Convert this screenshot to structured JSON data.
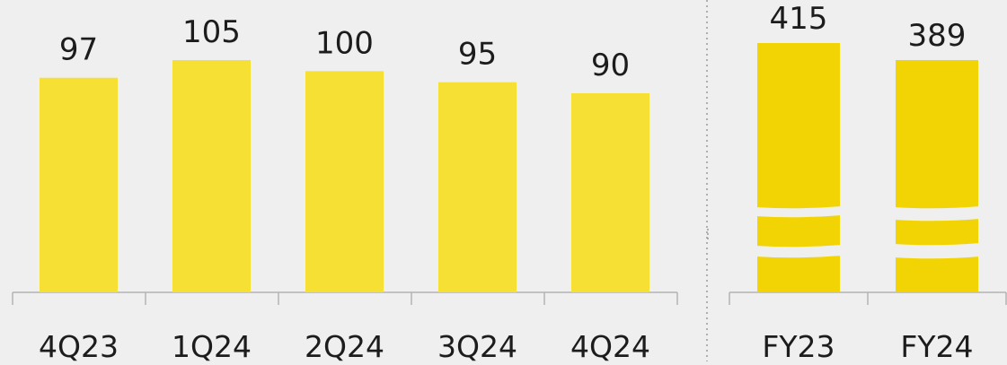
{
  "chart_data": [
    {
      "type": "bar",
      "categories": [
        "4Q23",
        "1Q24",
        "2Q24",
        "3Q24",
        "4Q24"
      ],
      "values": [
        97,
        105,
        100,
        95,
        90
      ],
      "data_labels": [
        "97",
        "105",
        "100",
        "95",
        "90"
      ],
      "title": "",
      "xlabel": "",
      "ylabel": "",
      "ylim": [
        0,
        105
      ],
      "grid": false,
      "bar_color": "#f6e034"
    },
    {
      "type": "bar",
      "categories": [
        "FY23",
        "FY24"
      ],
      "values": [
        415,
        389
      ],
      "data_labels": [
        "415",
        "389"
      ],
      "title": "",
      "xlabel": "",
      "ylabel": "",
      "axis_break": true,
      "grid": false,
      "bar_color": "#f2d405"
    }
  ],
  "colors": {
    "background": "#efefef",
    "axis": "#b3b3b3",
    "separator": "#9a9a9a",
    "text": "#1c1c1c"
  }
}
